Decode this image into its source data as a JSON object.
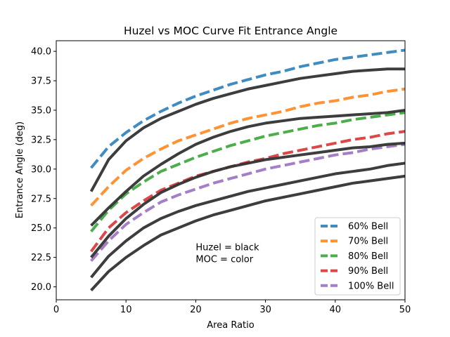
{
  "chart_data": {
    "type": "line",
    "title": "Huzel vs MOC Curve Fit Entrance Angle",
    "xlabel": "Area Ratio",
    "ylabel": "Entrance Angle (deg)",
    "xlim": [
      0,
      50
    ],
    "ylim": [
      18.9,
      40.9
    ],
    "xticks": [
      0,
      10,
      20,
      30,
      40,
      50
    ],
    "yticks": [
      20.0,
      22.5,
      25.0,
      27.5,
      30.0,
      32.5,
      35.0,
      37.5,
      40.0
    ],
    "xtick_labels": [
      "0",
      "10",
      "20",
      "30",
      "40",
      "50"
    ],
    "ytick_labels": [
      "20.0",
      "22.5",
      "25.0",
      "27.5",
      "30.0",
      "32.5",
      "35.0",
      "37.5",
      "40.0"
    ],
    "grid": false,
    "legend_position": "lower-right",
    "x": [
      5,
      7.5,
      10,
      12.5,
      15,
      17.5,
      20,
      22.5,
      25,
      27.5,
      30,
      32.5,
      35,
      37.5,
      40,
      42.5,
      45,
      47.5,
      50
    ],
    "series": [
      {
        "name": "60% Bell",
        "color": "#1f77b4",
        "style": "dashed",
        "values": [
          30.1,
          31.9,
          33.1,
          34.1,
          34.9,
          35.6,
          36.2,
          36.7,
          37.2,
          37.6,
          38.0,
          38.3,
          38.7,
          39.0,
          39.3,
          39.5,
          39.7,
          39.9,
          40.1
        ]
      },
      {
        "name": "70% Bell",
        "color": "#ff7f0e",
        "style": "dashed",
        "values": [
          26.9,
          28.5,
          29.9,
          30.9,
          31.7,
          32.4,
          32.9,
          33.4,
          33.9,
          34.3,
          34.6,
          34.9,
          35.3,
          35.6,
          35.8,
          36.1,
          36.3,
          36.6,
          36.8
        ]
      },
      {
        "name": "80% Bell",
        "color": "#2ca02c",
        "style": "dashed",
        "values": [
          24.7,
          26.5,
          27.9,
          28.9,
          29.8,
          30.4,
          31.0,
          31.5,
          32.0,
          32.4,
          32.8,
          33.1,
          33.4,
          33.7,
          33.9,
          34.2,
          34.4,
          34.6,
          34.8
        ]
      },
      {
        "name": "90% Bell",
        "color": "#d62728",
        "style": "dashed",
        "values": [
          23.0,
          25.0,
          26.3,
          27.3,
          28.2,
          28.8,
          29.4,
          29.8,
          30.2,
          30.6,
          30.9,
          31.3,
          31.6,
          31.9,
          32.2,
          32.5,
          32.7,
          33.0,
          33.2
        ]
      },
      {
        "name": "100% Bell",
        "color": "#9467bd",
        "style": "dashed",
        "values": [
          22.2,
          23.9,
          25.3,
          26.3,
          27.2,
          27.8,
          28.3,
          28.8,
          29.2,
          29.6,
          30.0,
          30.3,
          30.6,
          30.9,
          31.2,
          31.4,
          31.7,
          31.9,
          32.1
        ]
      },
      {
        "color": "#333333",
        "style": "solid",
        "values": [
          28.1,
          30.8,
          32.4,
          33.5,
          34.3,
          34.9,
          35.5,
          36.0,
          36.4,
          36.8,
          37.1,
          37.4,
          37.7,
          37.9,
          38.1,
          38.3,
          38.4,
          38.5,
          38.5
        ]
      },
      {
        "color": "#333333",
        "style": "solid",
        "values": [
          25.2,
          26.7,
          28.1,
          29.4,
          30.4,
          31.3,
          32.1,
          32.7,
          33.2,
          33.6,
          33.9,
          34.1,
          34.3,
          34.4,
          34.5,
          34.6,
          34.7,
          34.8,
          35.0
        ]
      },
      {
        "color": "#333333",
        "style": "solid",
        "values": [
          22.5,
          24.3,
          25.8,
          27.0,
          28.0,
          28.7,
          29.3,
          29.8,
          30.2,
          30.5,
          30.8,
          31.0,
          31.2,
          31.4,
          31.6,
          31.8,
          31.9,
          32.1,
          32.2
        ]
      },
      {
        "color": "#333333",
        "style": "solid",
        "values": [
          20.8,
          22.6,
          23.9,
          25.0,
          25.8,
          26.4,
          26.9,
          27.3,
          27.7,
          28.1,
          28.4,
          28.7,
          29.0,
          29.3,
          29.6,
          29.8,
          30.0,
          30.3,
          30.5
        ]
      },
      {
        "color": "#333333",
        "style": "solid",
        "values": [
          19.7,
          21.3,
          22.5,
          23.5,
          24.4,
          25.0,
          25.6,
          26.1,
          26.5,
          26.9,
          27.3,
          27.6,
          27.9,
          28.2,
          28.5,
          28.8,
          29.0,
          29.2,
          29.4
        ]
      }
    ],
    "annotations": [
      {
        "text": "Huzel = black",
        "x": 20,
        "y": 23.1
      },
      {
        "text": "MOC = color",
        "x": 20,
        "y": 22.1
      }
    ]
  }
}
